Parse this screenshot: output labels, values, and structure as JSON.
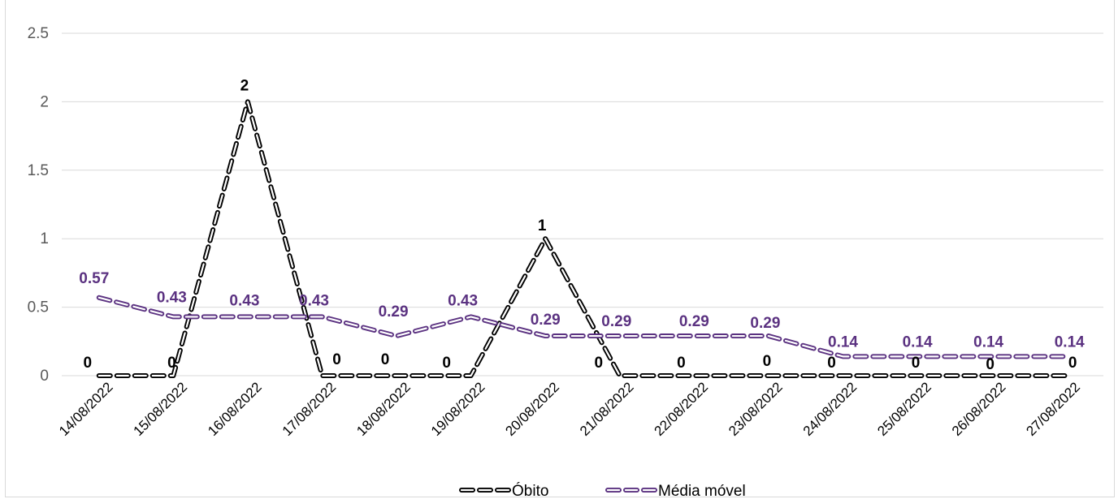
{
  "chart_data": {
    "type": "line",
    "categories": [
      "14/08/2022",
      "15/08/2022",
      "16/08/2022",
      "17/08/2022",
      "18/08/2022",
      "19/08/2022",
      "20/08/2022",
      "21/08/2022",
      "22/08/2022",
      "23/08/2022",
      "24/08/2022",
      "25/08/2022",
      "26/08/2022",
      "27/08/2022"
    ],
    "series": [
      {
        "name": "Óbito",
        "values": [
          0,
          0,
          2,
          0,
          0,
          0,
          1,
          0,
          0,
          0,
          0,
          0,
          0,
          0
        ],
        "labels": [
          "0",
          "0",
          "2",
          "0",
          "0",
          "0",
          "1",
          "0",
          "0",
          "0",
          "0",
          "0",
          "0",
          "0"
        ],
        "color": "#000000"
      },
      {
        "name": "Média móvel",
        "values": [
          0.57,
          0.43,
          0.43,
          0.43,
          0.29,
          0.43,
          0.29,
          0.29,
          0.29,
          0.29,
          0.14,
          0.14,
          0.14,
          0.14
        ],
        "labels": [
          "0.57",
          "0.43",
          "0.43",
          "0.43",
          "0.29",
          "0.43",
          "0.29",
          "0.29",
          "0.29",
          "0.29",
          "0.14",
          "0.14",
          "0.14",
          "0.14"
        ],
        "color": "#5b3281"
      }
    ],
    "yticks": [
      "0",
      "0.5",
      "1",
      "1.5",
      "2",
      "2.5"
    ],
    "ylim": [
      0,
      2.5
    ],
    "grid": true,
    "legend_position": "bottom"
  }
}
